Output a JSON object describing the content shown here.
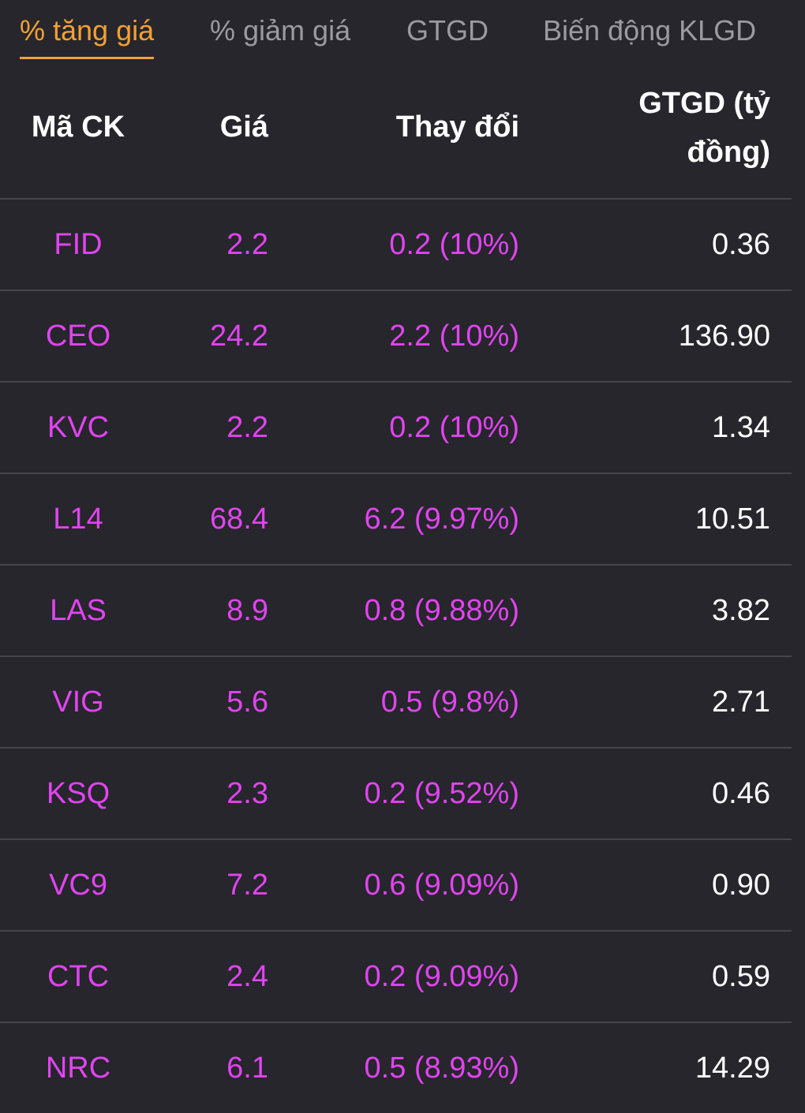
{
  "colors": {
    "background": "#26262c",
    "active_tab": "#f5a033",
    "inactive_tab": "#9a9aa0",
    "ceiling_price": "#e144f0",
    "divider": "#45454b"
  },
  "tabs": [
    {
      "label": "% tăng giá",
      "active": true
    },
    {
      "label": "% giảm giá",
      "active": false
    },
    {
      "label": "GTGD",
      "active": false
    },
    {
      "label": "Biến động KLGD",
      "active": false
    }
  ],
  "table": {
    "headers": {
      "code": "Mã CK",
      "price": "Giá",
      "change": "Thay đổi",
      "value_line1": "GTGD (tỷ",
      "value_line2": "đồng)"
    },
    "rows": [
      {
        "code": "FID",
        "price": "2.2",
        "change": "0.2 (10%)",
        "value": "0.36"
      },
      {
        "code": "CEO",
        "price": "24.2",
        "change": "2.2 (10%)",
        "value": "136.90"
      },
      {
        "code": "KVC",
        "price": "2.2",
        "change": "0.2 (10%)",
        "value": "1.34"
      },
      {
        "code": "L14",
        "price": "68.4",
        "change": "6.2 (9.97%)",
        "value": "10.51"
      },
      {
        "code": "LAS",
        "price": "8.9",
        "change": "0.8 (9.88%)",
        "value": "3.82"
      },
      {
        "code": "VIG",
        "price": "5.6",
        "change": "0.5 (9.8%)",
        "value": "2.71"
      },
      {
        "code": "KSQ",
        "price": "2.3",
        "change": "0.2 (9.52%)",
        "value": "0.46"
      },
      {
        "code": "VC9",
        "price": "7.2",
        "change": "0.6 (9.09%)",
        "value": "0.90"
      },
      {
        "code": "CTC",
        "price": "2.4",
        "change": "0.2 (9.09%)",
        "value": "0.59"
      },
      {
        "code": "NRC",
        "price": "6.1",
        "change": "0.5 (8.93%)",
        "value": "14.29"
      }
    ]
  }
}
